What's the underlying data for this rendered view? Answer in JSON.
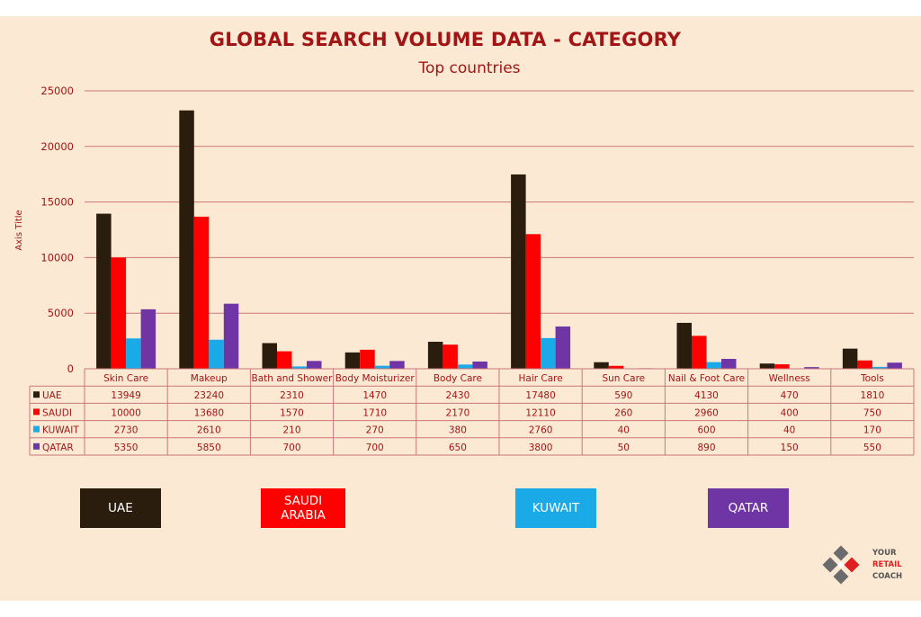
{
  "chart_data": {
    "type": "bar",
    "title": "GLOBAL SEARCH VOLUME DATA - CATEGORY",
    "subtitle": "Top countries",
    "ylabel": "Axis Title",
    "ylim": [
      0,
      25000
    ],
    "yticks": [
      "0",
      "5000",
      "10000",
      "15000",
      "20000",
      "25000"
    ],
    "grid": true,
    "legend_position": "bottom",
    "categories": [
      "Skin Care",
      "Makeup",
      "Bath and Shower",
      "Body Moisturizer",
      "Body Care",
      "Hair Care",
      "Sun Care",
      "Nail & Foot Care",
      "Wellness",
      "Tools"
    ],
    "series": [
      {
        "name": "UAE",
        "color": "#2b1d0e",
        "values": [
          13949,
          23240,
          2310,
          1470,
          2430,
          17480,
          590,
          4130,
          470,
          1810
        ]
      },
      {
        "name": "SAUDI",
        "color": "#ff0000",
        "values": [
          10000,
          13680,
          1570,
          1710,
          2170,
          12110,
          260,
          2960,
          400,
          750
        ]
      },
      {
        "name": "KUWAIT",
        "color": "#1aaae8",
        "values": [
          2730,
          2610,
          210,
          270,
          380,
          2760,
          40,
          600,
          40,
          170
        ]
      },
      {
        "name": "QATAR",
        "color": "#6f35a5",
        "values": [
          5350,
          5850,
          700,
          700,
          650,
          3800,
          50,
          890,
          150,
          550
        ]
      }
    ]
  },
  "legend_boxes": [
    {
      "label": "UAE",
      "color": "#2b1d0e"
    },
    {
      "label": "SAUDI\nARABIA",
      "color": "#ff0000"
    },
    {
      "label": "KUWAIT",
      "color": "#1aaae8"
    },
    {
      "label": "QATAR",
      "color": "#6f35a5"
    }
  ],
  "logo": {
    "line1": "YOUR",
    "line2": "RETAIL",
    "line3": "COACH"
  },
  "colors": {
    "background": "#fbe9d4",
    "accent": "#a31515",
    "grid": "#c9777a"
  }
}
